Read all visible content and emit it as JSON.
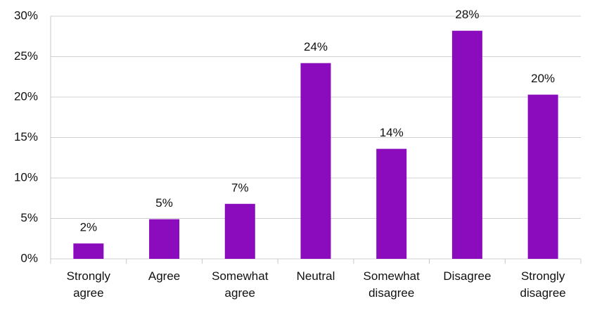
{
  "chart_data": {
    "type": "bar",
    "categories": [
      "Strongly agree",
      "Agree",
      "Somewhat agree",
      "Neutral",
      "Somewhat disagree",
      "Disagree",
      "Strongly disagree"
    ],
    "values": [
      1.9,
      4.9,
      6.8,
      24.2,
      13.6,
      28.2,
      20.3
    ],
    "value_labels": [
      "2%",
      "5%",
      "7%",
      "24%",
      "14%",
      "28%",
      "20%"
    ],
    "color": "#8a0cbd",
    "ylim": [
      0,
      30
    ],
    "yticks": [
      {
        "value": 0,
        "label": "0%"
      },
      {
        "value": 5,
        "label": "5%"
      },
      {
        "value": 10,
        "label": "10%"
      },
      {
        "value": 15,
        "label": "15%"
      },
      {
        "value": 20,
        "label": "20%"
      },
      {
        "value": 25,
        "label": "25%"
      },
      {
        "value": 30,
        "label": "30%"
      }
    ],
    "grid": true
  }
}
